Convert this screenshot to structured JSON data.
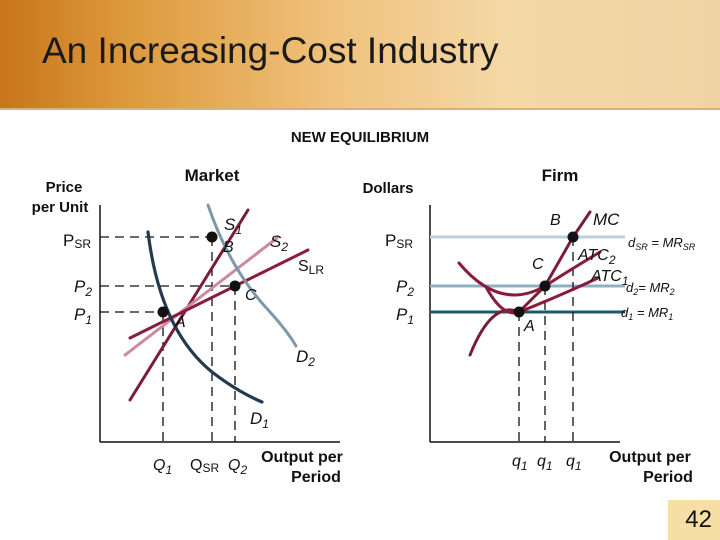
{
  "slide": {
    "title": "An Increasing-Cost Industry",
    "subtitle": "NEW EQUILIBRIUM",
    "page_number": "42"
  },
  "market": {
    "title": "Market",
    "y_axis_label_line1": "Price",
    "y_axis_label_line2": "per Unit",
    "x_axis_label_line1": "Output per",
    "x_axis_label_line2": "Period",
    "price_labels": {
      "psr_main": "P",
      "psr_sub": "SR",
      "p2_main": "P",
      "p2_sub": "2",
      "p1_main": "P",
      "p1_sub": "1"
    },
    "quantity_labels": {
      "q1_main": "Q",
      "q1_sub": "1",
      "qsr_main": "Q",
      "qsr_sub": "SR",
      "q2_main": "Q",
      "q2_sub": "2"
    },
    "curve_labels": {
      "s1_main": "S",
      "s1_sub": "1",
      "s2_main": "S",
      "s2_sub": "2",
      "slr_main": "S",
      "slr_sub": "LR",
      "d1_main": "D",
      "d1_sub": "1",
      "d2_main": "D",
      "d2_sub": "2"
    },
    "point_labels": {
      "a": "A",
      "b": "B",
      "c": "C"
    }
  },
  "firm": {
    "title": "Firm",
    "y_axis_label": "Dollars",
    "x_axis_label_line1": "Output per",
    "x_axis_label_line2": "Period",
    "price_labels": {
      "psr_main": "P",
      "psr_sub": "SR",
      "p2_main": "P",
      "p2_sub": "2",
      "p1_main": "P",
      "p1_sub": "1"
    },
    "quantity_labels": {
      "q_a_main": "q",
      "q_a_sub": "1",
      "q_b_main": "q",
      "q_b_sub": "1",
      "q_c_main": "q",
      "q_c_sub": "1"
    },
    "curve_labels": {
      "mc": "MC",
      "atc2_main": "ATC",
      "atc2_sub": "2",
      "atc1_main": "ATC",
      "atc1_sub": "1",
      "dsr_main": "d",
      "dsr_sub": "SR",
      "dsr_eq": " = MR",
      "dsr_eq_sub": "SR",
      "d2_main": "d",
      "d2_sub": "2",
      "d2_eq": "= MR",
      "d2_eq_sub": "2",
      "d1_main": "d",
      "d1_sub": "1",
      "d1_eq": " = MR",
      "d1_eq_sub": "1"
    },
    "point_labels": {
      "a": "A",
      "b": "B",
      "c": "C"
    }
  },
  "colors": {
    "title_gradient_start": "#c8751a",
    "title_gradient_end": "#efd3a4",
    "axis": "#111111",
    "supply1": "#7a1e38",
    "supply2": "#c98ba4",
    "slr": "#8a1b3c",
    "demand1": "#243a4e",
    "demand2": "#7d98a8",
    "psr_line": "#b9cfdb",
    "p2_line": "#8fb0c2",
    "p1_line": "#1f5a6a",
    "mc": "#7a1e38",
    "atc": "#8a1b3c"
  }
}
